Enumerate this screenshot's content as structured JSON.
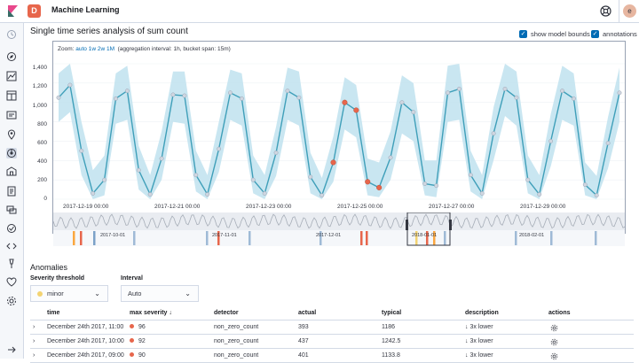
{
  "app": {
    "space_letter": "D",
    "title": "Machine Learning",
    "avatar_letter": "e"
  },
  "chart": {
    "title": "Single time series analysis of sum count",
    "show_model_bounds_label": "show model bounds",
    "annotations_label": "annotations",
    "zoom_label": "Zoom:",
    "zoom_auto": "auto",
    "zoom_1w": "1w",
    "zoom_2w": "2w",
    "zoom_1M": "1M",
    "aggregation_info": "(aggregation interval: 1h, bucket span: 15m)",
    "colors": {
      "line": "#3f9fb9",
      "bounds": "#bfe2ee",
      "anomaly_critical": "#e7664c",
      "anomaly_major": "#fba740",
      "anomaly_minor": "#f3d371"
    },
    "context_ticks": [
      "2017-10-01",
      "2017-11-01",
      "2017-12-01",
      "2018-01-01",
      "2018-02-01"
    ]
  },
  "chart_data": {
    "type": "line",
    "xlabel": "",
    "ylabel": "",
    "ylim": [
      0,
      1400
    ],
    "y_ticks": [
      "1,400",
      "1,200",
      "1,000",
      "800",
      "600",
      "400",
      "200",
      "0"
    ],
    "x_ticks": [
      "2017-12-19 00:00",
      "2017-12-21 00:00",
      "2017-12-23 00:00",
      "2017-12-25 00:00",
      "2017-12-27 00:00",
      "2017-12-29 00:00"
    ],
    "series": [
      {
        "x": [
          "2017-12-17 22:00",
          "2017-12-18 04:00",
          "2017-12-18 10:00",
          "2017-12-18 16:00",
          "2017-12-18 22:00",
          "2017-12-19 04:00",
          "2017-12-19 10:00",
          "2017-12-19 16:00",
          "2017-12-19 22:00",
          "2017-12-20 04:00",
          "2017-12-20 10:00",
          "2017-12-20 16:00",
          "2017-12-20 22:00",
          "2017-12-21 04:00",
          "2017-12-21 10:00",
          "2017-12-21 16:00",
          "2017-12-21 22:00",
          "2017-12-22 04:00",
          "2017-12-22 10:00",
          "2017-12-22 16:00",
          "2017-12-22 22:00",
          "2017-12-23 04:00",
          "2017-12-23 10:00",
          "2017-12-23 16:00",
          "2017-12-23 22:00",
          "2017-12-24 04:00",
          "2017-12-24 10:00",
          "2017-12-24 16:00",
          "2017-12-24 22:00",
          "2017-12-25 04:00",
          "2017-12-25 10:00",
          "2017-12-25 16:00",
          "2017-12-25 22:00",
          "2017-12-26 04:00",
          "2017-12-26 10:00",
          "2017-12-26 16:00",
          "2017-12-26 22:00",
          "2017-12-27 04:00",
          "2017-12-27 10:00",
          "2017-12-27 16:00",
          "2017-12-27 22:00",
          "2017-12-28 04:00",
          "2017-12-28 10:00",
          "2017-12-28 16:00",
          "2017-12-28 22:00",
          "2017-12-29 04:00",
          "2017-12-29 10:00",
          "2017-12-29 16:00",
          "2017-12-29 22:00",
          "2017-12-30 04:00"
        ],
        "values": [
          1050,
          1180,
          500,
          60,
          200,
          1040,
          1120,
          300,
          50,
          420,
          1080,
          1070,
          250,
          50,
          520,
          1100,
          1040,
          200,
          60,
          480,
          1120,
          1050,
          230,
          40,
          380,
          1000,
          920,
          180,
          120,
          430,
          1000,
          900,
          160,
          140,
          1100,
          1140,
          250,
          60,
          680,
          1140,
          1050,
          200,
          50,
          600,
          1120,
          1040,
          150,
          40,
          580,
          1100
        ],
        "lower": [
          800,
          900,
          250,
          0,
          40,
          780,
          820,
          100,
          0,
          200,
          800,
          780,
          80,
          0,
          280,
          820,
          760,
          60,
          0,
          240,
          820,
          760,
          60,
          0,
          180,
          720,
          640,
          40,
          20,
          200,
          680,
          600,
          40,
          20,
          800,
          820,
          80,
          0,
          400,
          860,
          760,
          60,
          0,
          340,
          820,
          760,
          40,
          0,
          320,
          800
        ],
        "upper": [
          1300,
          1400,
          800,
          300,
          450,
          1300,
          1380,
          550,
          250,
          700,
          1320,
          1320,
          500,
          250,
          800,
          1340,
          1300,
          450,
          250,
          750,
          1360,
          1320,
          480,
          220,
          650,
          1260,
          1180,
          420,
          380,
          700,
          1280,
          1200,
          400,
          400,
          1380,
          1400,
          500,
          250,
          950,
          1400,
          1320,
          450,
          250,
          880,
          1380,
          1300,
          380,
          240,
          850,
          1360
        ]
      }
    ]
  },
  "anomalies": {
    "title": "Anomalies",
    "severity_label": "Severity threshold",
    "severity_value": "minor",
    "interval_label": "Interval",
    "interval_value": "Auto",
    "columns": {
      "time": "time",
      "max_severity": "max severity",
      "detector": "detector",
      "actual": "actual",
      "typical": "typical",
      "description": "description",
      "actions": "actions"
    },
    "rows": [
      {
        "time": "December 24th 2017, 11:00",
        "severity": "96",
        "severity_color": "#e7664c",
        "detector": "non_zero_count",
        "actual": "393",
        "typical": "1186",
        "description": "3x lower"
      },
      {
        "time": "December 24th 2017, 10:00",
        "severity": "92",
        "severity_color": "#e7664c",
        "detector": "non_zero_count",
        "actual": "437",
        "typical": "1242.5",
        "description": "3x lower"
      },
      {
        "time": "December 24th 2017, 09:00",
        "severity": "90",
        "severity_color": "#e7664c",
        "detector": "non_zero_count",
        "actual": "401",
        "typical": "1133.8",
        "description": "3x lower"
      }
    ]
  }
}
